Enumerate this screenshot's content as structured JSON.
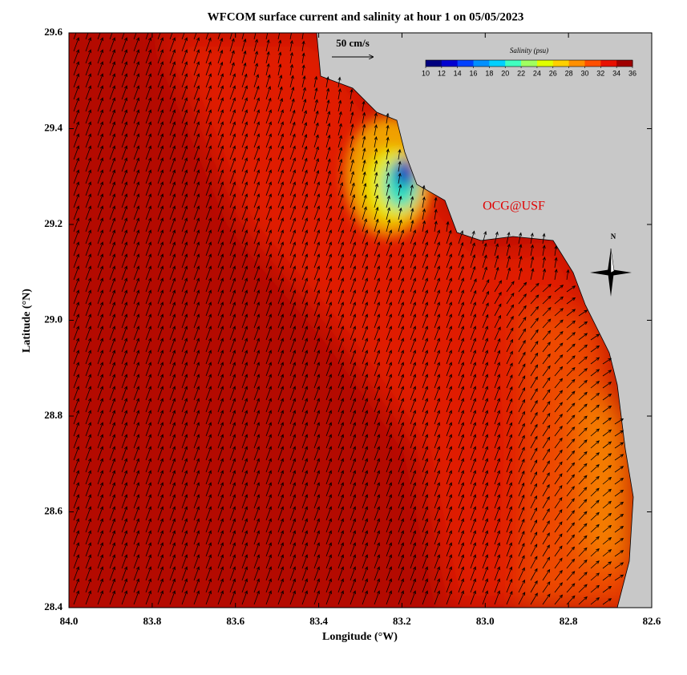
{
  "map": {
    "title": "WFCOM surface current and salinity at hour 1 on 05/05/2023",
    "xlabel": "Longitude (°W)",
    "ylabel": "Latitude (°N)",
    "xlim": [
      84.0,
      82.6
    ],
    "ylim": [
      28.4,
      29.6
    ],
    "xticks": [
      {
        "value": 84.0,
        "label": "84.0"
      },
      83.8,
      83.6,
      83.4,
      83.2,
      {
        "value": 83.0,
        "label": "83.0"
      },
      82.8,
      82.6
    ],
    "yticks": [
      29.6,
      29.4,
      29.2,
      {
        "value": 29.0,
        "label": "29.0"
      },
      28.8,
      28.6,
      28.4
    ],
    "colorbar": {
      "label": "Salinity (psu)",
      "lim": [
        10,
        36
      ],
      "ticks": [
        10,
        12,
        14,
        16,
        18,
        20,
        22,
        24,
        26,
        28,
        30,
        32,
        34,
        36
      ]
    },
    "scale_label": "50 cm/s",
    "watermark": "OCG@USF",
    "compass": "N"
  }
}
